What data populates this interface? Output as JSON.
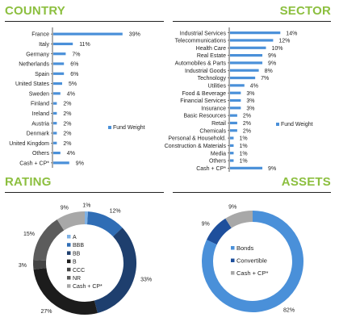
{
  "sections": {
    "country": "COUNTRY",
    "sector": "SECTOR",
    "rating": "RATING",
    "assets": "ASSETS"
  },
  "chart_data": [
    {
      "id": "country",
      "type": "bar",
      "orientation": "horizontal",
      "legend": "Fund Weight",
      "legend_position": "right",
      "color": "#4a90d9",
      "categories": [
        "France",
        "Italy",
        "Germany",
        "Netherlands",
        "Spain",
        "United States",
        "Sweden",
        "Finland",
        "Ireland",
        "Austria",
        "Denmark",
        "United Kingdom",
        "Others",
        "Cash + CP*"
      ],
      "values": [
        39,
        11,
        7,
        6,
        6,
        5,
        4,
        2,
        2,
        2,
        2,
        2,
        4,
        9
      ],
      "value_labels": [
        "39%",
        "11%",
        "7%",
        "6%",
        "6%",
        "5%",
        "4%",
        "2%",
        "2%",
        "2%",
        "2%",
        "2%",
        "4%",
        "9%"
      ]
    },
    {
      "id": "sector",
      "type": "bar",
      "orientation": "horizontal",
      "legend": "Fund Weight",
      "legend_position": "right",
      "color": "#4a90d9",
      "categories": [
        "Industrial Services",
        "Telecommunications",
        "Health Care",
        "Real Estate",
        "Automobiles & Parts",
        "Industrial Goods",
        "Technology",
        "Utilities",
        "Food & Beverage",
        "Financial Services",
        "Insurance",
        "Basic Resources",
        "Retail",
        "Chemicals",
        "Personal & Household.",
        "Construction & Materials",
        "Media",
        "Others",
        "Cash + CP*"
      ],
      "values": [
        14,
        12,
        10,
        9,
        9,
        8,
        7,
        4,
        3,
        3,
        3,
        2,
        2,
        2,
        1,
        1,
        1,
        1,
        9
      ],
      "value_labels": [
        "14%",
        "12%",
        "10%",
        "9%",
        "9%",
        "8%",
        "7%",
        "4%",
        "3%",
        "3%",
        "3%",
        "2%",
        "2%",
        "2%",
        "1%",
        "1%",
        "1%",
        "1%",
        "9%"
      ]
    },
    {
      "id": "rating",
      "type": "pie",
      "style": "donut",
      "legend_position": "center",
      "categories": [
        "A",
        "BBB",
        "BB",
        "B",
        "CCC",
        "NR",
        "Cash + CP*"
      ],
      "values": [
        1,
        12,
        33,
        27,
        3,
        15,
        9
      ],
      "value_labels": [
        "1%",
        "12%",
        "33%",
        "27%",
        "3%",
        "15%",
        "9%"
      ],
      "colors": [
        "#7fb2e5",
        "#2f6db5",
        "#1e3f6e",
        "#1c1c1c",
        "#444444",
        "#5c5c5c",
        "#a8a8a8"
      ]
    },
    {
      "id": "assets",
      "type": "pie",
      "style": "donut",
      "legend_position": "center",
      "categories": [
        "Bonds",
        "Convertible",
        "Cash + CP*"
      ],
      "values": [
        82,
        9,
        9
      ],
      "value_labels": [
        "82%",
        "9%",
        "9%"
      ],
      "colors": [
        "#4a90d9",
        "#1e4f9c",
        "#a8a8a8"
      ]
    }
  ]
}
